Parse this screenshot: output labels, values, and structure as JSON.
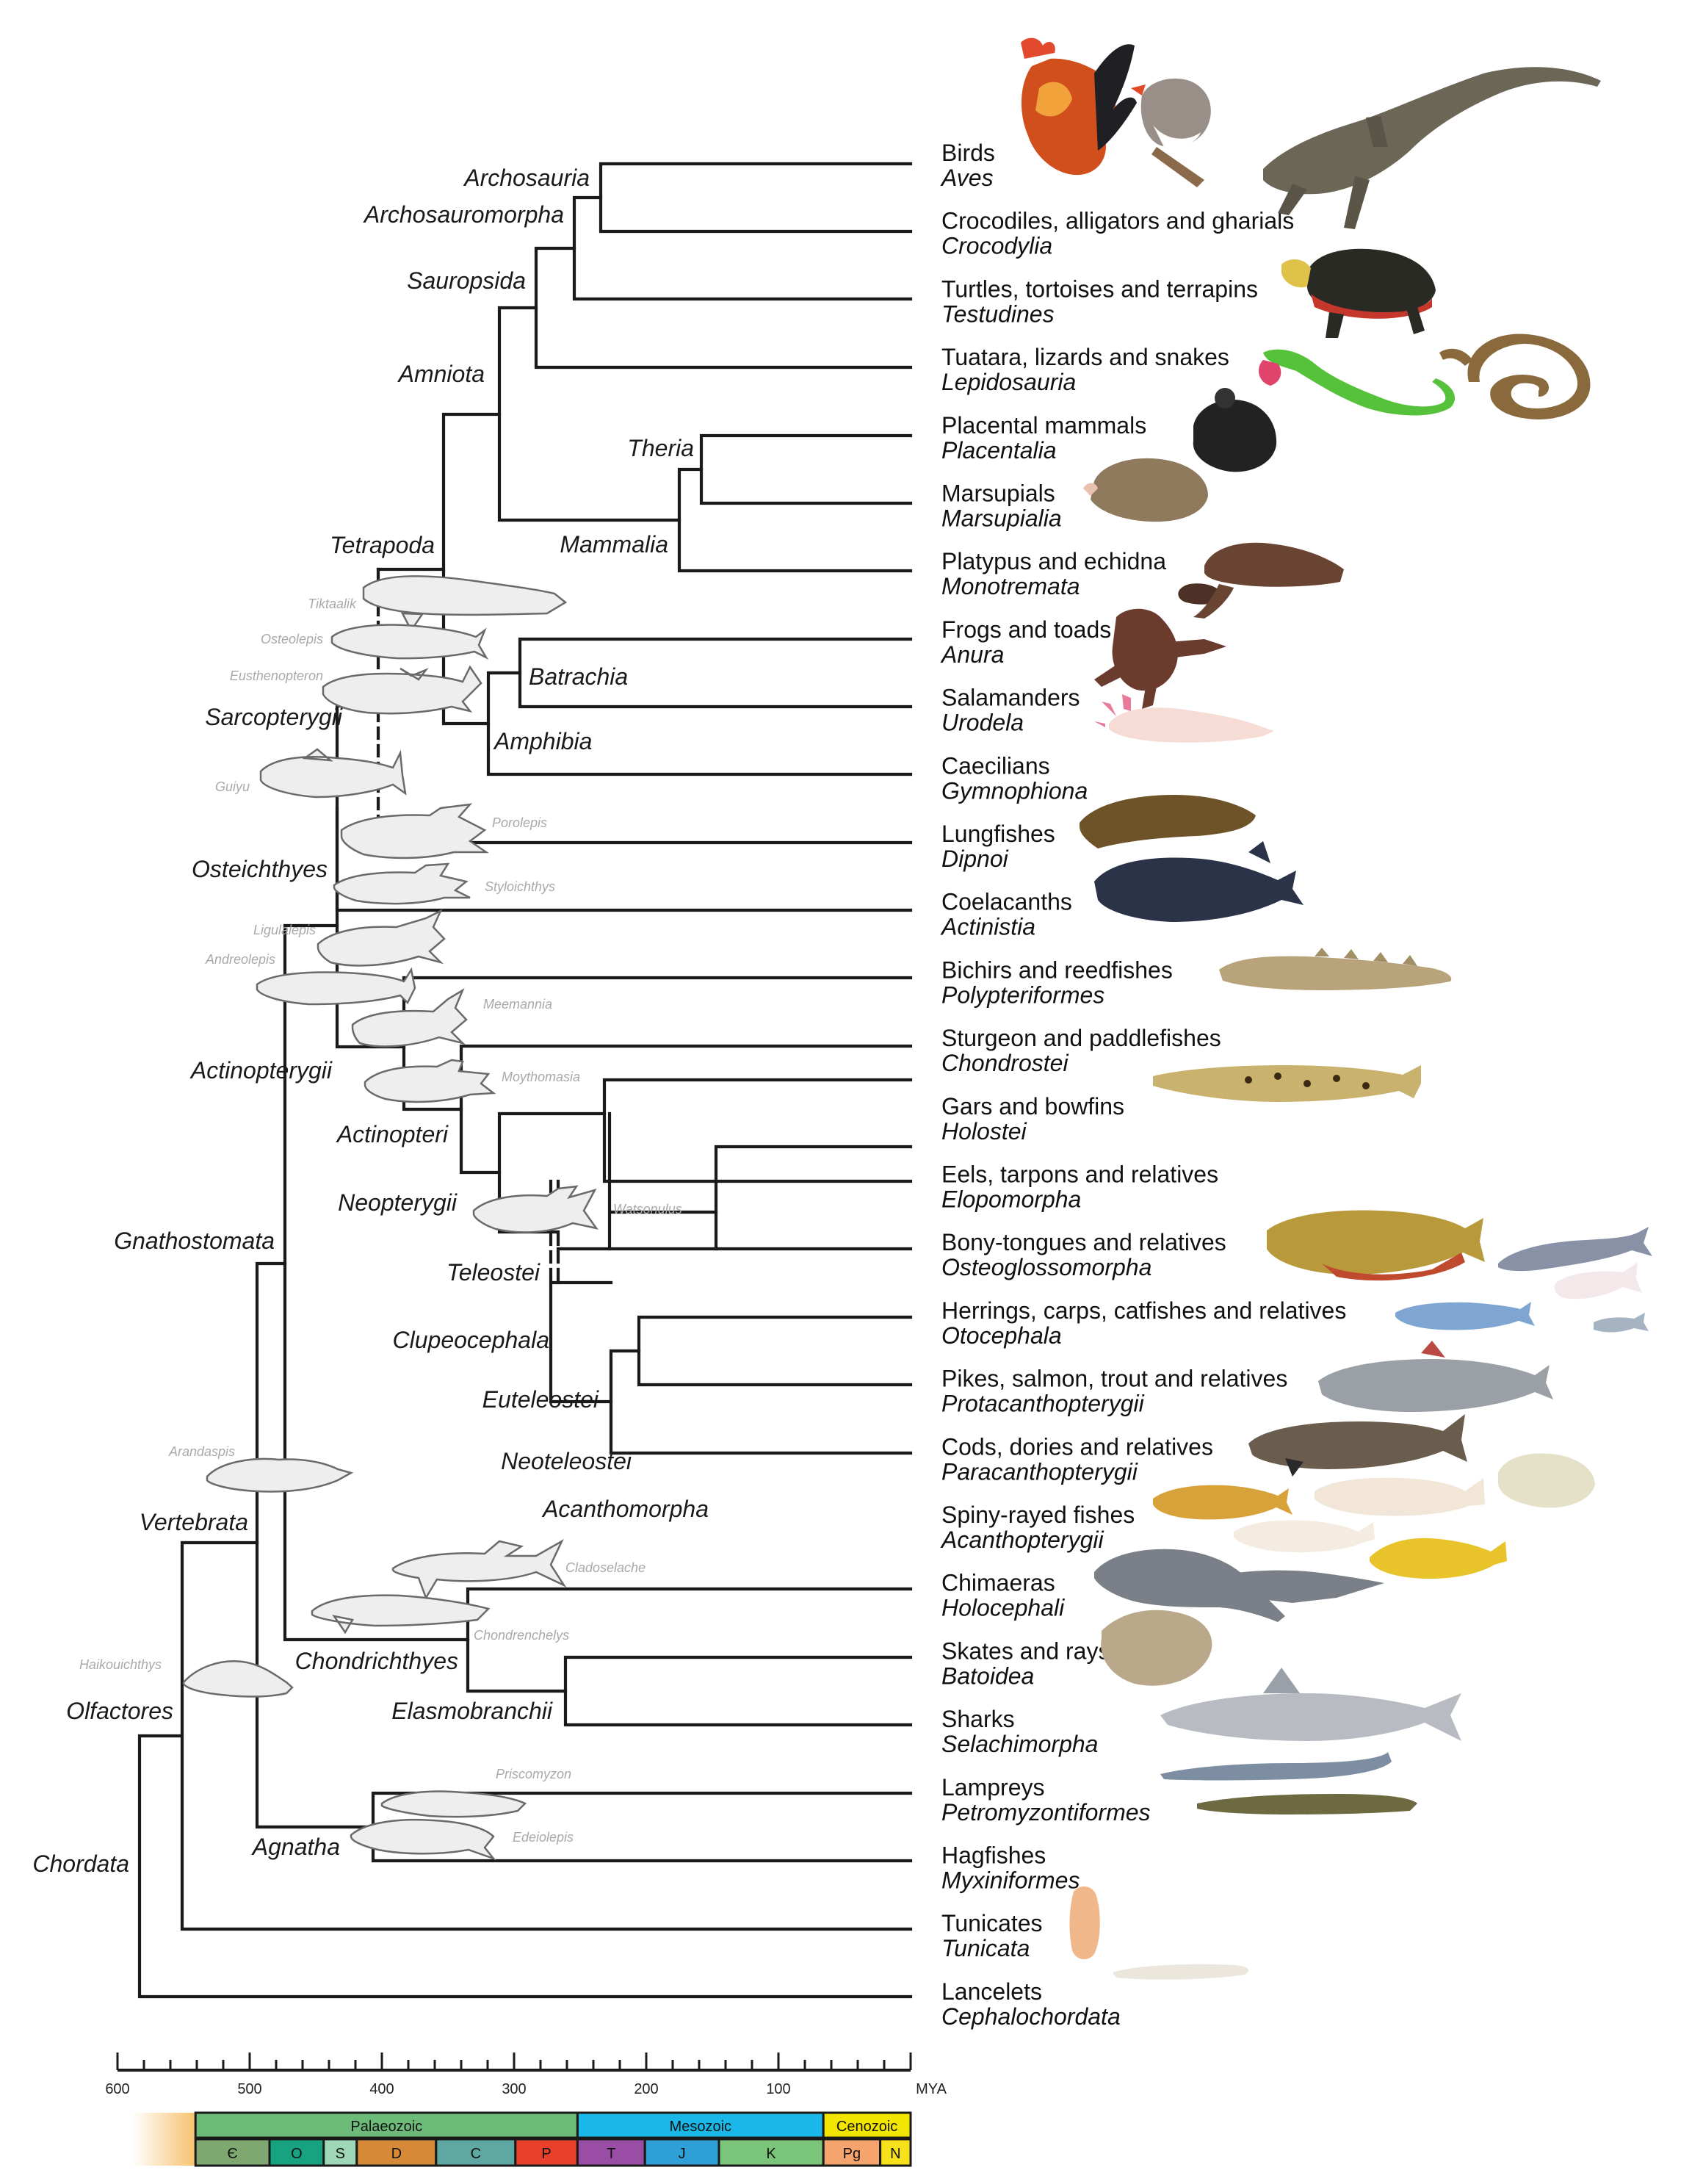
{
  "colors": {
    "branch": "#1a1a1a",
    "fossil_fill": "#eeeeee",
    "fossil_label": "#a9a9a9",
    "palaeozoic": "#6dbb78",
    "mesozoic": "#1ab8e8",
    "cenozoic": "#f2e600",
    "cambrian": "#7fa870",
    "ordovician": "#17a37f",
    "silurian": "#9fd7b9",
    "devonian": "#d68a37",
    "carboniferous": "#5fa7a3",
    "permian": "#e8402b",
    "triassic": "#9a4da5",
    "jurassic": "#2f9fd8",
    "cretaceous": "#7bc57b",
    "paleogene": "#f4a46c",
    "neogene": "#f7e11a"
  },
  "taxa": [
    {
      "common": "Birds",
      "sci": "Aves",
      "icon": "rooster-icon"
    },
    {
      "common": "Crocodiles, alligators and gharials",
      "sci": "Crocodylia",
      "icon": "crocodile-icon"
    },
    {
      "common": "Turtles, tortoises and terrapins",
      "sci": "Testudines",
      "icon": "turtle-icon"
    },
    {
      "common": "Tuatara, lizards and snakes",
      "sci": "Lepidosauria",
      "icon": "lizard-icon"
    },
    {
      "common": "Placental mammals",
      "sci": "Placentalia",
      "icon": "mouse-icon"
    },
    {
      "common": "Marsupials",
      "sci": "Marsupialia",
      "icon": "opossum-icon"
    },
    {
      "common": "Platypus and echidna",
      "sci": "Monotremata",
      "icon": "platypus-icon"
    },
    {
      "common": "Frogs and toads",
      "sci": "Anura",
      "icon": "frog-icon"
    },
    {
      "common": "Salamanders",
      "sci": "Urodela",
      "icon": "axolotl-icon"
    },
    {
      "common": "Caecilians",
      "sci": "Gymnophiona",
      "icon": "caecilian-icon"
    },
    {
      "common": "Lungfishes",
      "sci": "Dipnoi",
      "icon": "lungfish-icon"
    },
    {
      "common": "Coelacanths",
      "sci": "Actinistia",
      "icon": "coelacanth-icon"
    },
    {
      "common": "Bichirs and reedfishes",
      "sci": "Polypteriformes",
      "icon": "bichir-icon"
    },
    {
      "common": "Sturgeon and paddlefishes",
      "sci": "Chondrostei",
      "icon": "sturgeon-icon"
    },
    {
      "common": "Gars and bowfins",
      "sci": "Holostei",
      "icon": "gar-icon"
    },
    {
      "common": "Eels, tarpons and relatives",
      "sci": "Elopomorpha",
      "icon": "eel-icon"
    },
    {
      "common": "Bony-tongues and relatives",
      "sci": "Osteoglossomorpha",
      "icon": "arowana-icon"
    },
    {
      "common": "Herrings, carps, catfishes and relatives",
      "sci": "Otocephala",
      "icon": "zebrafish-icon"
    },
    {
      "common": "Pikes, salmon, trout and relatives",
      "sci": "Protacanthopterygii",
      "icon": "salmon-icon"
    },
    {
      "common": "Cods, dories and relatives",
      "sci": "Paracanthopterygii",
      "icon": "cod-icon"
    },
    {
      "common": "Spiny-rayed fishes",
      "sci": "Acanthopterygii",
      "icon": "pufferfish-icon"
    },
    {
      "common": "Chimaeras",
      "sci": "Holocephali",
      "icon": "chimaera-icon"
    },
    {
      "common": "Skates and rays",
      "sci": "Batoidea",
      "icon": "skate-icon"
    },
    {
      "common": "Sharks",
      "sci": "Selachimorpha",
      "icon": "shark-icon"
    },
    {
      "common": "Lampreys",
      "sci": "Petromyzontiformes",
      "icon": "lamprey-icon"
    },
    {
      "common": "Hagfishes",
      "sci": "Myxiniformes",
      "icon": "hagfish-icon"
    },
    {
      "common": "Tunicates",
      "sci": "Tunicata",
      "icon": "tunicate-icon"
    },
    {
      "common": "Lancelets",
      "sci": "Cephalochordata",
      "icon": "lancelet-icon"
    }
  ],
  "clades": {
    "archosauria": "Archosauria",
    "archosauromorpha": "Archosauromorpha",
    "sauropsida": "Sauropsida",
    "amniota": "Amniota",
    "theria": "Theria",
    "mammalia": "Mammalia",
    "tetrapoda": "Tetrapoda",
    "batrachia": "Batrachia",
    "amphibia": "Amphibia",
    "sarcopterygii": "Sarcopterygii",
    "osteichthyes": "Osteichthyes",
    "actinopterygii": "Actinopterygii",
    "actinopteri": "Actinopteri",
    "neopterygii": "Neopterygii",
    "teleostei": "Teleostei",
    "clupeocephala": "Clupeocephala",
    "euteleostei": "Euteleostei",
    "neoteleostei": "Neoteleostei",
    "acanthomorpha": "Acanthomorpha",
    "gnathostomata": "Gnathostomata",
    "vertebrata": "Vertebrata",
    "chondrichthyes": "Chondrichthyes",
    "elasmobranchii": "Elasmobranchii",
    "olfactores": "Olfactores",
    "agnatha": "Agnatha",
    "chordata": "Chordata"
  },
  "fossils": {
    "tiktaalik": "Tiktaalik",
    "osteolepis": "Osteolepis",
    "eusthenopteron": "Eusthenopteron",
    "guiyu": "Guiyu",
    "porolepis": "Porolepis",
    "styloichthys": "Styloichthys",
    "ligulalepis": "Ligulalepis",
    "andreolepis": "Andreolepis",
    "meemannia": "Meemannia",
    "moythomasia": "Moythomasia",
    "watsonulus": "Watsonulus",
    "arandaspis": "Arandaspis",
    "cladoselache": "Cladoselache",
    "chondrenchelys": "Chondrenchelys",
    "haikouichthys": "Haikouichthys",
    "priscomyzon": "Priscomyzon",
    "euphanerops": "Edeiolepis"
  },
  "axis": {
    "ticks": [
      {
        "label": "600",
        "value": 600
      },
      {
        "label": "500",
        "value": 500
      },
      {
        "label": "400",
        "value": 400
      },
      {
        "label": "300",
        "value": 300
      },
      {
        "label": "200",
        "value": 200
      },
      {
        "label": "100",
        "value": 100
      }
    ],
    "unit": "MYA"
  },
  "eras": [
    {
      "label": "Palaeozoic",
      "from": 541,
      "to": 252
    },
    {
      "label": "Mesozoic",
      "from": 252,
      "to": 66
    },
    {
      "label": "Cenozoic",
      "from": 66,
      "to": 0
    }
  ],
  "periods": [
    {
      "label": "Є",
      "from": 541,
      "to": 485
    },
    {
      "label": "O",
      "from": 485,
      "to": 444
    },
    {
      "label": "S",
      "from": 444,
      "to": 419
    },
    {
      "label": "D",
      "from": 419,
      "to": 359
    },
    {
      "label": "C",
      "from": 359,
      "to": 299
    },
    {
      "label": "P",
      "from": 299,
      "to": 252
    },
    {
      "label": "T",
      "from": 252,
      "to": 201
    },
    {
      "label": "J",
      "from": 201,
      "to": 145
    },
    {
      "label": "K",
      "from": 145,
      "to": 66
    },
    {
      "label": "Pg",
      "from": 66,
      "to": 23
    },
    {
      "label": "N",
      "from": 23,
      "to": 0
    }
  ]
}
